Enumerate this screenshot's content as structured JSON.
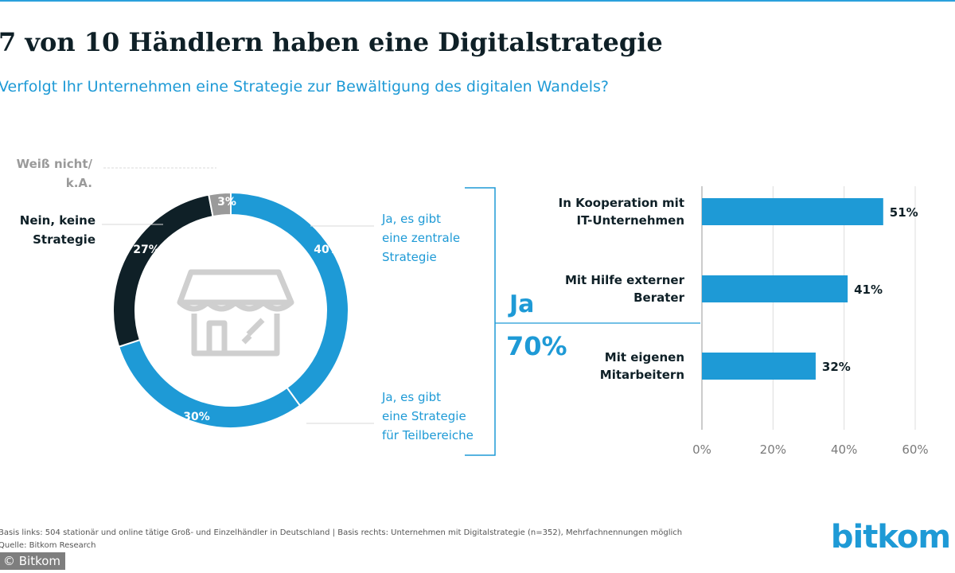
{
  "title": "7 von 10 Händlern haben eine Digitalstrategie",
  "subtitle": "Verfolgt Ihr Unternehmen eine Strategie zur Bewältigung des digitalen Wandels?",
  "colors": {
    "blue": "#1e9ad6",
    "dark": "#0f2027",
    "gray": "#9a9a9a",
    "line": "#cfcfcf"
  },
  "icons": {
    "center": "shop-icon"
  },
  "chart_data": [
    {
      "type": "pie",
      "variant": "donut",
      "title": "Verfolgt Ihr Unternehmen eine Strategie zur Bewältigung des digitalen Wandels?",
      "slices": [
        {
          "label": "Ja, es gibt eine zentrale Strategie",
          "lines": [
            "Ja, es gibt",
            "eine zentrale",
            "Strategie"
          ],
          "value": 40,
          "value_label": "40%",
          "color": "#1e9ad6"
        },
        {
          "label": "Ja, es gibt eine Strategie für Teilbereiche",
          "lines": [
            "Ja, es gibt",
            "eine Strategie",
            "für Teilbereiche"
          ],
          "value": 30,
          "value_label": "30%",
          "color": "#1e9ad6"
        },
        {
          "label": "Nein, keine Strategie",
          "lines": [
            "Nein, keine",
            "Strategie"
          ],
          "value": 27,
          "value_label": "27%",
          "color": "#0f2027"
        },
        {
          "label": "Weiß nicht/ k.A.",
          "lines": [
            "Weiß nicht/",
            "k.A."
          ],
          "value": 3,
          "value_label": "3%",
          "color": "#9a9a9a"
        }
      ],
      "total_label": "Ja",
      "total_value": "70%"
    },
    {
      "type": "bar",
      "orientation": "horizontal",
      "categories": [
        "In Kooperation mit IT-Unternehmen",
        "Mit Hilfe externer Berater",
        "Mit eigenen Mitarbeitern"
      ],
      "category_lines": [
        [
          "In Kooperation mit",
          "IT-Unternehmen"
        ],
        [
          "Mit Hilfe externer",
          "Berater"
        ],
        [
          "Mit eigenen",
          "Mitarbeitern"
        ]
      ],
      "values": [
        51,
        41,
        32
      ],
      "value_labels": [
        "51%",
        "41%",
        "32%"
      ],
      "xlim": [
        0,
        60
      ],
      "ticks": [
        0,
        20,
        40,
        60
      ],
      "tick_labels": [
        "0%",
        "20%",
        "40%",
        "60%"
      ],
      "grid": true
    }
  ],
  "footnote": {
    "basis": "Basis links: 504 stationär und online tätige Groß- und Einzelhändler in Deutschland | Basis rechts: Unternehmen mit Digitalstrategie (n=352), Mehrfachnennungen möglich",
    "source": "Quelle: Bitkom Research"
  },
  "credit": "© Bitkom",
  "logo": "bitkom"
}
